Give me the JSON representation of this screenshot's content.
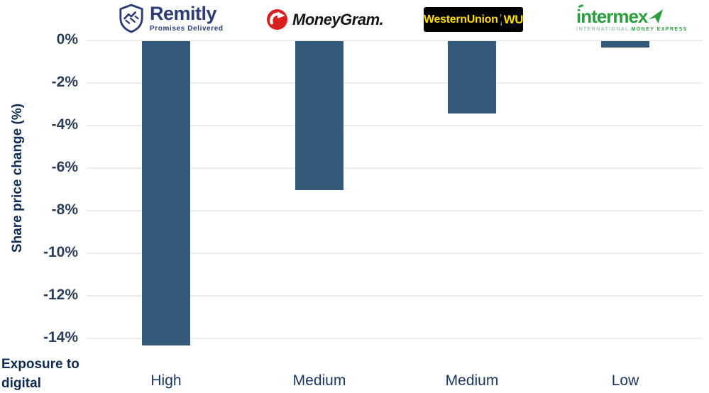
{
  "chart_data": {
    "type": "bar",
    "title": "",
    "ylabel": "Share price change (%)",
    "xlabel_line1": "Exposure to",
    "xlabel_line2": "digital",
    "companies": [
      "Remitly",
      "MoneyGram",
      "Western Union",
      "Intermex"
    ],
    "categories": [
      "High",
      "Medium",
      "Medium",
      "Low"
    ],
    "values": [
      -14.3,
      -7.0,
      -3.4,
      -0.3
    ],
    "yticks": [
      0,
      -2,
      -4,
      -6,
      -8,
      -10,
      -12,
      -14
    ],
    "ytick_labels": [
      "0%",
      "-2%",
      "-4%",
      "-6%",
      "-8%",
      "-10%",
      "-12%",
      "-14%"
    ],
    "ylim": [
      -14.7,
      0
    ],
    "grid": true,
    "legend": false,
    "bar_color": "#35597a",
    "grid_color": "#ececec",
    "tick_color": "#2a3f55",
    "label_color": "#17355c"
  },
  "logos": {
    "remitly": {
      "wordmark": "Remitly",
      "tagline": "Promises Delivered",
      "color": "#2d3b76"
    },
    "moneygram": {
      "wordmark": "MoneyGram.",
      "icon_color": "#d8201f",
      "text_color": "#151515"
    },
    "western_union": {
      "wordmark_left": "WesternUnion",
      "wordmark_right": "WU",
      "bg_color": "#000000",
      "text_color": "#ffdd00"
    },
    "intermex": {
      "wordmark": "intermex",
      "subtitle_left": "INTERNATIONAL",
      "subtitle_right": "MONEY EXPRESS",
      "color": "#2b9f3e"
    }
  }
}
